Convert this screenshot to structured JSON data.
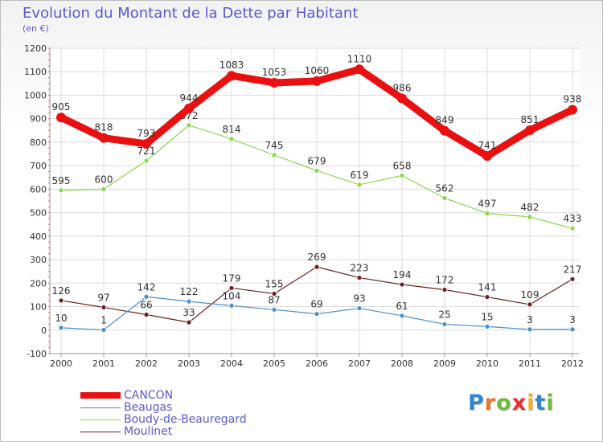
{
  "header": {
    "title": "Evolution du Montant de la Dette par Habitant",
    "subtitle": "(en €)"
  },
  "brand": {
    "text": "Proxiti",
    "letter_colors": [
      "#2f86c8",
      "#e8772e",
      "#6cba3e",
      "#e8302e",
      "#f2b01e",
      "#2f86c8",
      "#6cba3e"
    ]
  },
  "chart_data": {
    "type": "line",
    "title": "Evolution du Montant de la Dette par Habitant",
    "subtitle": "(en €)",
    "x": [
      "2000",
      "2001",
      "2002",
      "2003",
      "2004",
      "2005",
      "2006",
      "2007",
      "2008",
      "2009",
      "2010",
      "2011",
      "2012"
    ],
    "ylim": [
      -100,
      1200
    ],
    "yticks": [
      -100,
      0,
      100,
      200,
      300,
      400,
      500,
      600,
      700,
      800,
      900,
      1000,
      1100,
      1200
    ],
    "grid": true,
    "legend_position": "bottom-left",
    "series": [
      {
        "name": "CANCON",
        "color": "#e81010",
        "values": [
          905,
          818,
          793,
          944,
          1083,
          1053,
          1060,
          1110,
          986,
          849,
          741,
          851,
          938
        ]
      },
      {
        "name": "Beaugas",
        "color": "#4a90c8",
        "values": [
          10,
          1,
          142,
          122,
          104,
          87,
          69,
          93,
          61,
          25,
          15,
          3,
          3
        ]
      },
      {
        "name": "Boudy-de-Beauregard",
        "color": "#8ad44e",
        "values": [
          595,
          600,
          721,
          872,
          814,
          745,
          679,
          619,
          658,
          562,
          497,
          482,
          433
        ]
      },
      {
        "name": "Moulinet",
        "color": "#6b1f1f",
        "values": [
          126,
          97,
          66,
          33,
          179,
          155,
          269,
          223,
          194,
          172,
          141,
          109,
          217
        ]
      }
    ]
  }
}
